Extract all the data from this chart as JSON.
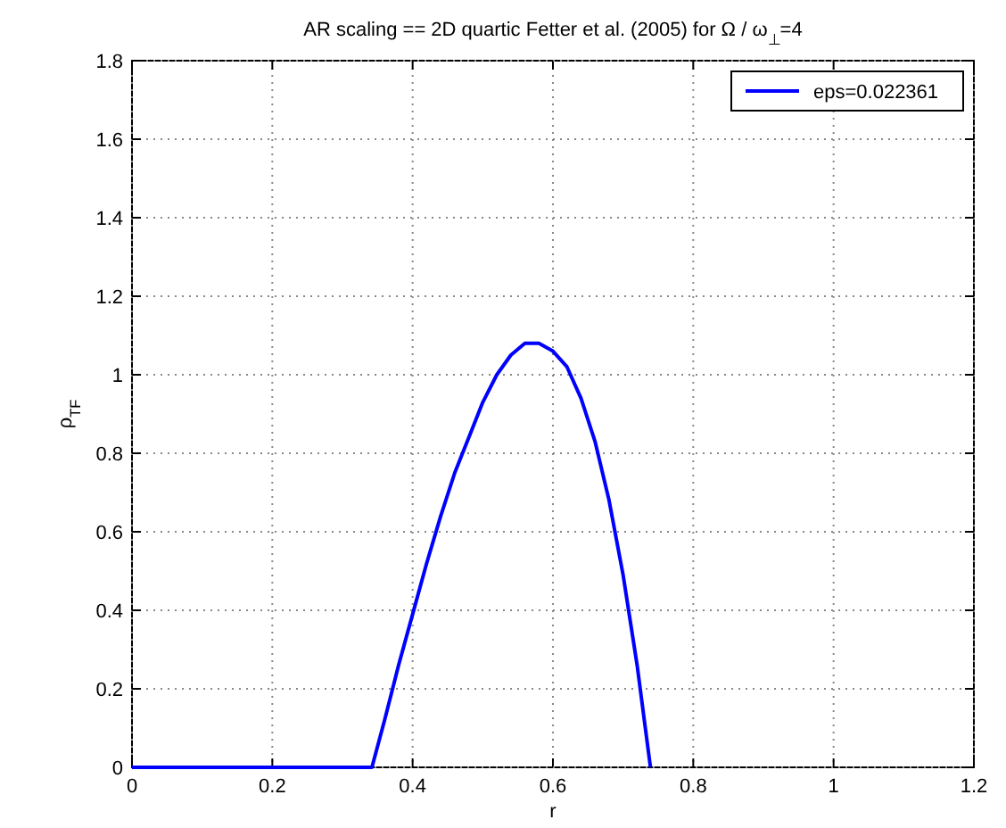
{
  "chart_data": {
    "type": "line",
    "title": "AR scaling == 2D quartic Fetter et al. (2005) for Ω / ω$_{⊥}$=4",
    "xlabel": "r",
    "ylabel": "ρ$_{TF}$",
    "xlim": [
      0,
      1.2
    ],
    "xticks": [
      0,
      0.2,
      0.4,
      0.6,
      0.8,
      1,
      1.2
    ],
    "ylim": [
      0,
      1.8
    ],
    "yticks": [
      0,
      0.2,
      0.4,
      0.6,
      0.8,
      1,
      1.2,
      1.4,
      1.6,
      1.8
    ],
    "grid": true,
    "legend": "top right",
    "marker": "none",
    "line_style": "solid",
    "series": [
      {
        "name": "eps=0.022361",
        "color": "#0000ff",
        "x": [
          0,
          0.2,
          0.342,
          0.36,
          0.38,
          0.4,
          0.42,
          0.44,
          0.46,
          0.48,
          0.5,
          0.52,
          0.54,
          0.56,
          0.58,
          0.6,
          0.62,
          0.64,
          0.66,
          0.68,
          0.7,
          0.72,
          0.739
        ],
        "values": [
          0,
          0,
          0,
          0.12,
          0.26,
          0.39,
          0.52,
          0.64,
          0.75,
          0.84,
          0.93,
          1.0,
          1.05,
          1.08,
          1.08,
          1.06,
          1.02,
          0.94,
          0.83,
          0.68,
          0.49,
          0.26,
          0
        ]
      }
    ]
  }
}
